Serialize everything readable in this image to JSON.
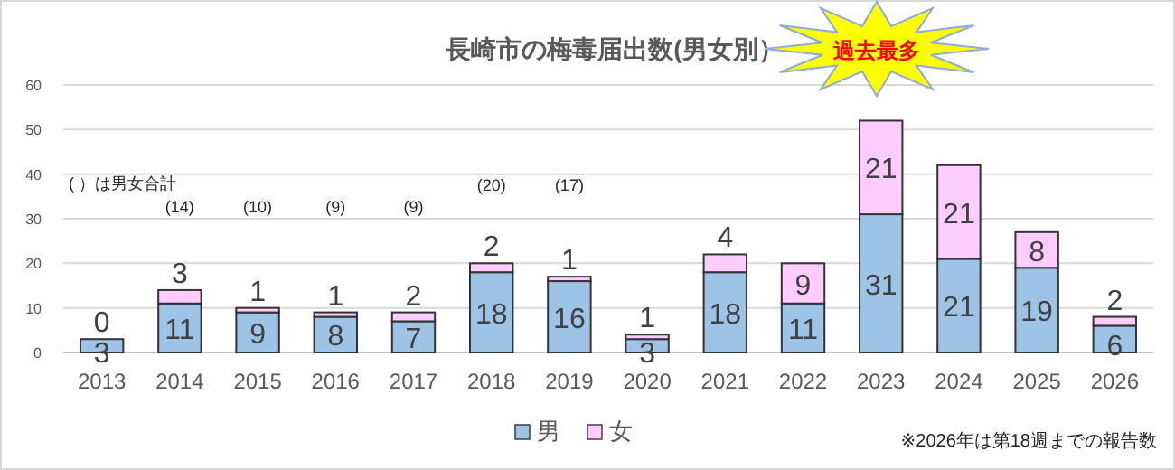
{
  "chart_data": {
    "type": "bar",
    "title": "長崎市の梅毒届出数(男女別）",
    "stacked": true,
    "categories": [
      "2013",
      "2014",
      "2015",
      "2016",
      "2017",
      "2018",
      "2019",
      "2020",
      "2021",
      "2022",
      "2023",
      "2024",
      "2025",
      "2026"
    ],
    "series": [
      {
        "name": "男",
        "color": "#9dc3e6",
        "values": [
          3,
          11,
          9,
          8,
          7,
          18,
          16,
          3,
          18,
          11,
          31,
          21,
          19,
          6
        ]
      },
      {
        "name": "女",
        "color": "#ffccff",
        "values": [
          0,
          3,
          1,
          1,
          2,
          2,
          1,
          1,
          4,
          9,
          21,
          21,
          8,
          2
        ]
      }
    ],
    "ylim": [
      0,
      60
    ],
    "yticks": [
      0,
      10,
      20,
      30,
      40,
      50,
      60
    ],
    "grid": "y",
    "legend": "bottom",
    "data_labels": true,
    "annotations": [
      "( ）は男女合計",
      "過去最多",
      "※2026年は第18週までの報告数",
      "(14)",
      "(10)",
      "(9)",
      "(9)",
      "(20)",
      "(17)"
    ]
  }
}
